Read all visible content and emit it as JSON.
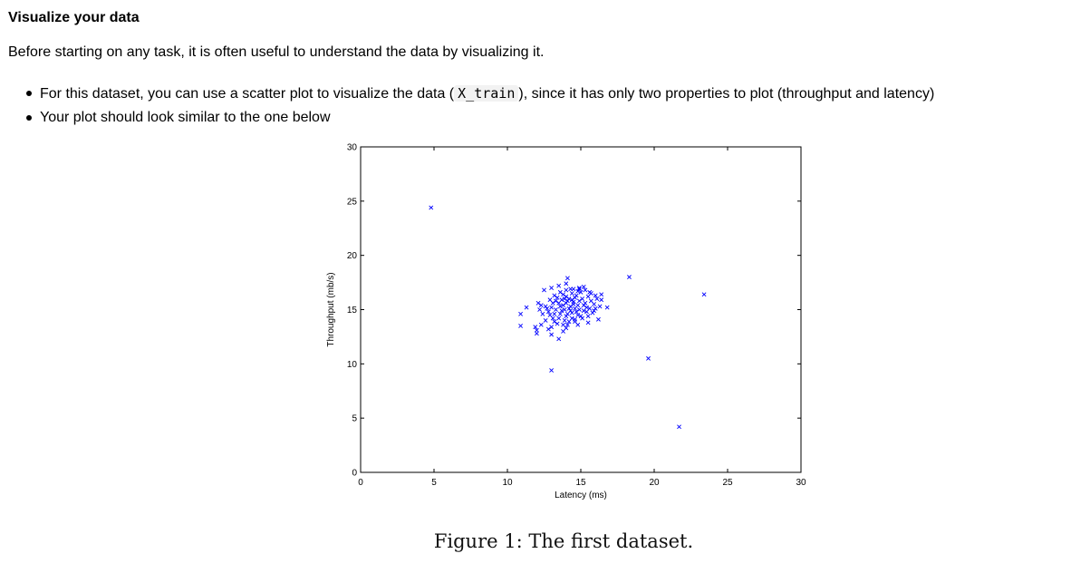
{
  "heading": "Visualize your data",
  "intro": "Before starting on any task, it is often useful to understand the data by visualizing it.",
  "bullets": {
    "item1_before": "For this dataset, you can use a scatter plot to visualize the data (",
    "item1_code": "X_train",
    "item1_after": "), since it has only two properties to plot (throughput and latency)",
    "item2": "Your plot should look similar to the one below"
  },
  "figure_caption": "Figure 1: The first dataset.",
  "chart_data": {
    "type": "scatter",
    "title": "",
    "xlabel": "Latency (ms)",
    "ylabel": "Throughput (mb/s)",
    "xlim": [
      0,
      30
    ],
    "ylim": [
      0,
      30
    ],
    "xticks": [
      0,
      5,
      10,
      15,
      20,
      25,
      30
    ],
    "yticks": [
      0,
      5,
      10,
      15,
      20,
      25,
      30
    ],
    "grid": false,
    "marker": "x",
    "color": "#0000ff",
    "points": [
      [
        4.8,
        24.4
      ],
      [
        18.3,
        18.0
      ],
      [
        23.4,
        16.4
      ],
      [
        19.6,
        10.5
      ],
      [
        21.7,
        4.2
      ],
      [
        13.0,
        9.4
      ],
      [
        10.9,
        14.6
      ],
      [
        10.9,
        13.5
      ],
      [
        11.3,
        15.2
      ],
      [
        11.9,
        13.4
      ],
      [
        12.0,
        13.1
      ],
      [
        12.0,
        12.8
      ],
      [
        12.3,
        15.4
      ],
      [
        12.6,
        14.0
      ],
      [
        12.8,
        13.2
      ],
      [
        13.0,
        12.7
      ],
      [
        13.5,
        12.3
      ],
      [
        13.8,
        13.0
      ],
      [
        12.5,
        16.8
      ],
      [
        13.0,
        17.0
      ],
      [
        13.5,
        17.2
      ],
      [
        14.0,
        17.4
      ],
      [
        14.3,
        16.9
      ],
      [
        14.9,
        16.9
      ],
      [
        15.2,
        17.1
      ],
      [
        15.7,
        16.5
      ],
      [
        16.0,
        16.3
      ],
      [
        16.3,
        15.3
      ],
      [
        16.0,
        15.1
      ],
      [
        15.8,
        14.7
      ],
      [
        15.5,
        14.4
      ],
      [
        15.1,
        14.2
      ],
      [
        14.6,
        13.9
      ],
      [
        14.1,
        13.6
      ],
      [
        13.2,
        13.9
      ],
      [
        12.9,
        14.5
      ],
      [
        12.7,
        15.1
      ],
      [
        13.1,
        15.6
      ],
      [
        13.4,
        16.1
      ],
      [
        13.8,
        16.4
      ],
      [
        14.2,
        16.0
      ],
      [
        14.5,
        15.7
      ],
      [
        14.8,
        15.4
      ],
      [
        14.9,
        15.0
      ],
      [
        14.4,
        14.7
      ],
      [
        14.0,
        14.4
      ],
      [
        13.6,
        14.6
      ],
      [
        13.3,
        15.0
      ],
      [
        13.6,
        15.3
      ],
      [
        14.0,
        15.6
      ],
      [
        14.3,
        15.3
      ],
      [
        14.6,
        15.1
      ],
      [
        14.3,
        14.9
      ],
      [
        13.9,
        15.0
      ],
      [
        14.1,
        15.8
      ],
      [
        14.7,
        16.3
      ],
      [
        15.1,
        16.0
      ],
      [
        15.3,
        15.6
      ],
      [
        15.4,
        15.2
      ],
      [
        15.2,
        14.9
      ],
      [
        14.8,
        14.5
      ],
      [
        14.4,
        14.2
      ],
      [
        13.9,
        14.0
      ],
      [
        13.5,
        14.2
      ],
      [
        13.2,
        14.6
      ],
      [
        13.0,
        15.2
      ],
      [
        13.3,
        15.8
      ],
      [
        13.7,
        15.9
      ],
      [
        14.0,
        16.2
      ],
      [
        14.4,
        16.5
      ],
      [
        14.8,
        16.7
      ],
      [
        15.0,
        16.6
      ],
      [
        15.5,
        16.2
      ],
      [
        15.7,
        15.8
      ],
      [
        15.9,
        15.5
      ],
      [
        15.6,
        15.1
      ],
      [
        15.4,
        14.8
      ],
      [
        15.0,
        14.4
      ],
      [
        14.6,
        14.1
      ],
      [
        14.2,
        13.9
      ],
      [
        13.8,
        13.6
      ],
      [
        13.4,
        13.7
      ],
      [
        13.1,
        14.2
      ],
      [
        12.8,
        14.8
      ],
      [
        12.6,
        15.3
      ],
      [
        12.9,
        15.9
      ],
      [
        13.2,
        16.3
      ],
      [
        13.6,
        16.6
      ],
      [
        14.0,
        16.8
      ],
      [
        14.5,
        16.9
      ],
      [
        14.9,
        17.0
      ],
      [
        15.3,
        16.8
      ],
      [
        15.6,
        16.6
      ],
      [
        16.1,
        16.0
      ],
      [
        14.2,
        15.1
      ],
      [
        14.5,
        15.5
      ],
      [
        13.8,
        15.4
      ],
      [
        14.7,
        14.8
      ],
      [
        13.7,
        14.9
      ],
      [
        14.1,
        14.6
      ],
      [
        14.4,
        15.9
      ],
      [
        13.5,
        15.6
      ],
      [
        14.9,
        15.8
      ],
      [
        15.2,
        15.4
      ],
      [
        13.9,
        16.0
      ],
      [
        14.6,
        16.1
      ],
      [
        12.4,
        14.6
      ],
      [
        12.2,
        15.0
      ],
      [
        14.1,
        17.9
      ],
      [
        16.4,
        16.4
      ],
      [
        16.8,
        15.2
      ],
      [
        15.9,
        14.9
      ],
      [
        12.3,
        13.6
      ],
      [
        13.0,
        13.4
      ],
      [
        14.0,
        13.3
      ],
      [
        14.8,
        13.6
      ],
      [
        15.5,
        13.8
      ],
      [
        16.2,
        14.1
      ],
      [
        16.4,
        15.9
      ],
      [
        12.1,
        15.6
      ]
    ]
  }
}
